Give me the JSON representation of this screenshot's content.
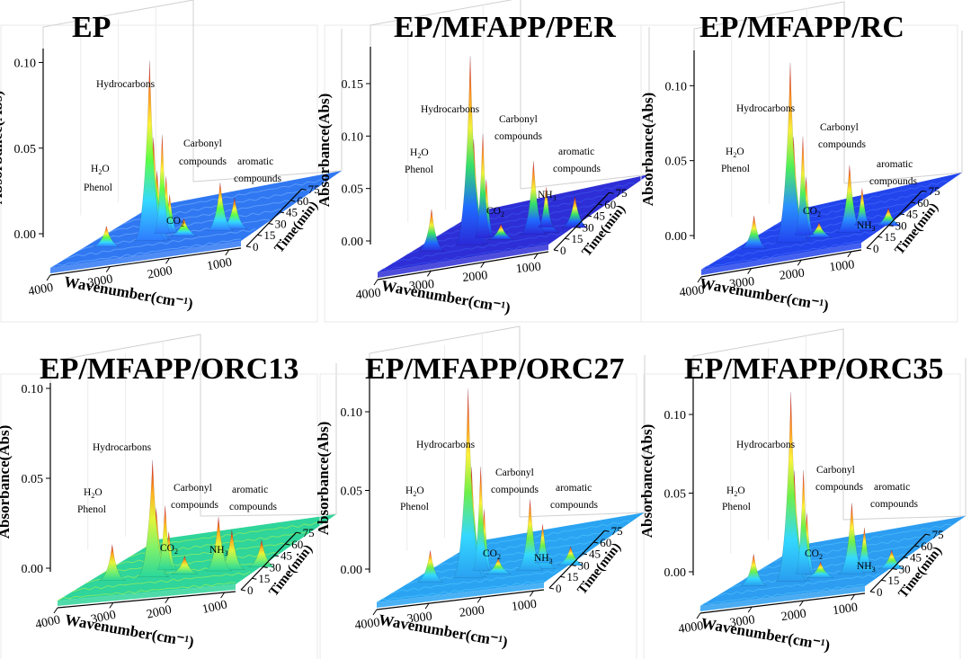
{
  "figure": {
    "panels": [
      {
        "title": "EP",
        "peaks": [
          [
            "Hydrocarbons",
            2925,
            0.105
          ]
        ],
        "annotations": [
          "Hydrocarbons",
          "H₂O",
          "Phenol",
          "Carbonyl compounds",
          "aromatic compounds",
          "CO₂"
        ]
      },
      {
        "title": "EP/MFAPP/PER",
        "annotations": [
          "Hydrocarbons",
          "H₂O",
          "Phenol",
          "Carbonyl compounds",
          "aromatic compounds",
          "CO₂",
          "NH₃"
        ]
      },
      {
        "title": "EP/MFAPP/RC",
        "annotations": [
          "Hydrocarbons",
          "H₂O",
          "Phenol",
          "Carbonyl compounds",
          "aromatic compounds",
          "CO₂",
          "NH₃"
        ]
      },
      {
        "title": "EP/MFAPP/ORC13",
        "annotations": [
          "Hydrocarbons",
          "H₂O",
          "Phenol",
          "Carbonyl compounds",
          "aromatic compounds",
          "CO₂",
          "NH₃"
        ]
      },
      {
        "title": "EP/MFAPP/ORC27",
        "annotations": [
          "Hydrocarbons",
          "H₂O",
          "Phenol",
          "Carbonyl compounds",
          "aromatic compounds",
          "CO₂",
          "NH₃"
        ]
      },
      {
        "title": "EP/MFAPP/ORC35",
        "annotations": [
          "Hydrocarbons",
          "H₂O",
          "Phenol",
          "Carbonyl compounds",
          "aromatic compounds",
          "CO₂",
          "NH₃"
        ]
      }
    ]
  },
  "chart_data": [
    {
      "type": "surface3d",
      "title": "EP",
      "xlabel": "Wavenumber(cm⁻¹)",
      "ylabel": "Time(min)",
      "zlabel": "Absorbance(Abs)",
      "x_ticks": [
        4000,
        3000,
        2000,
        1000
      ],
      "y_ticks": [
        0,
        15,
        30,
        45,
        60,
        75
      ],
      "z_ticks": [
        "0.00",
        "0.05",
        "0.10"
      ],
      "zlim": [
        0,
        0.105
      ],
      "peaks": [
        {
          "label": "Hydrocarbons",
          "wavenumber": 2925,
          "absorbance": 0.105
        },
        {
          "label": "Hydrocarbons",
          "wavenumber": 2860,
          "absorbance": 0.06
        },
        {
          "label": "Hydrocarbons",
          "wavenumber": 2800,
          "absorbance": 0.04
        },
        {
          "label": "H₂O / Phenol",
          "wavenumber": 3650,
          "absorbance": 0.012
        },
        {
          "label": "CO₂",
          "wavenumber": 2350,
          "absorbance": 0.01
        },
        {
          "label": "Carbonyl compounds",
          "wavenumber": 1740,
          "absorbance": 0.028
        },
        {
          "label": "aromatic compounds",
          "wavenumber": 1500,
          "absorbance": 0.018
        }
      ],
      "annotations": [
        "Hydrocarbons",
        "H₂O",
        "Phenol",
        "Carbonyl compounds",
        "aromatic compounds",
        "CO₂"
      ]
    },
    {
      "type": "surface3d",
      "title": "EP/MFAPP/PER",
      "xlabel": "Wavenumber(cm⁻¹)",
      "ylabel": "Time(min)",
      "zlabel": "Absorbance(Abs)",
      "x_ticks": [
        4000,
        3000,
        2000,
        1000
      ],
      "y_ticks": [
        0,
        15,
        30,
        45,
        60,
        75
      ],
      "z_ticks": [
        "0.00",
        "0.05",
        "0.10",
        "0.15"
      ],
      "zlim": [
        0,
        0.18
      ],
      "peaks": [
        {
          "label": "Hydrocarbons",
          "wavenumber": 2925,
          "absorbance": 0.18
        },
        {
          "label": "Hydrocarbons",
          "wavenumber": 2860,
          "absorbance": 0.1
        },
        {
          "label": "H₂O / Phenol",
          "wavenumber": 3650,
          "absorbance": 0.04
        },
        {
          "label": "CO₂",
          "wavenumber": 2350,
          "absorbance": 0.015
        },
        {
          "label": "Carbonyl compounds",
          "wavenumber": 1740,
          "absorbance": 0.07
        },
        {
          "label": "NH₃",
          "wavenumber": 965,
          "absorbance": 0.03
        },
        {
          "label": "aromatic compounds",
          "wavenumber": 1500,
          "absorbance": 0.03
        }
      ],
      "annotations": [
        "Hydrocarbons",
        "H₂O",
        "Phenol",
        "Carbonyl compounds",
        "aromatic compounds",
        "CO₂",
        "NH₃"
      ]
    },
    {
      "type": "surface3d",
      "title": "EP/MFAPP/RC",
      "xlabel": "Wavenumber(cm⁻¹)",
      "ylabel": "Time(min)",
      "zlabel": "Absorbance(Abs)",
      "x_ticks": [
        4000,
        3000,
        2000,
        1000
      ],
      "y_ticks": [
        0,
        15,
        30,
        45,
        60,
        75
      ],
      "z_ticks": [
        "0.00",
        "0.05",
        "0.10"
      ],
      "zlim": [
        0,
        0.12
      ],
      "peaks": [
        {
          "label": "Hydrocarbons",
          "wavenumber": 2925,
          "absorbance": 0.12
        },
        {
          "label": "Hydrocarbons",
          "wavenumber": 2860,
          "absorbance": 0.07
        },
        {
          "label": "H₂O / Phenol",
          "wavenumber": 3650,
          "absorbance": 0.022
        },
        {
          "label": "CO₂",
          "wavenumber": 2350,
          "absorbance": 0.01
        },
        {
          "label": "Carbonyl compounds",
          "wavenumber": 1740,
          "absorbance": 0.045
        },
        {
          "label": "NH₃",
          "wavenumber": 965,
          "absorbance": 0.012
        },
        {
          "label": "aromatic compounds",
          "wavenumber": 1500,
          "absorbance": 0.02
        }
      ],
      "annotations": [
        "Hydrocarbons",
        "H₂O",
        "Phenol",
        "Carbonyl compounds",
        "aromatic compounds",
        "CO₂",
        "NH₃"
      ]
    },
    {
      "type": "surface3d",
      "title": "EP/MFAPP/ORC13",
      "xlabel": "Wavenumber(cm⁻¹)",
      "ylabel": "Time(min)",
      "zlabel": "Absorbance(Abs)",
      "x_ticks": [
        4000,
        3000,
        2000,
        1000
      ],
      "y_ticks": [
        0,
        15,
        30,
        45,
        60,
        75
      ],
      "z_ticks": [
        "0.00",
        "0.05",
        "0.10"
      ],
      "zlim": [
        0,
        0.1
      ],
      "peaks": [
        {
          "label": "Hydrocarbons",
          "wavenumber": 2925,
          "absorbance": 0.065
        },
        {
          "label": "Hydrocarbons",
          "wavenumber": 2860,
          "absorbance": 0.038
        },
        {
          "label": "H₂O / Phenol",
          "wavenumber": 3650,
          "absorbance": 0.02
        },
        {
          "label": "CO₂",
          "wavenumber": 2350,
          "absorbance": 0.01
        },
        {
          "label": "Carbonyl compounds",
          "wavenumber": 1740,
          "absorbance": 0.03
        },
        {
          "label": "NH₃",
          "wavenumber": 965,
          "absorbance": 0.015
        },
        {
          "label": "aromatic compounds",
          "wavenumber": 1500,
          "absorbance": 0.022
        }
      ],
      "annotations": [
        "Hydrocarbons",
        "H₂O",
        "Phenol",
        "Carbonyl compounds",
        "aromatic compounds",
        "CO₂",
        "NH₃"
      ]
    },
    {
      "type": "surface3d",
      "title": "EP/MFAPP/ORC27",
      "xlabel": "Wavenumber(cm⁻¹)",
      "ylabel": "Time(min)",
      "zlabel": "Absorbance(Abs)",
      "x_ticks": [
        4000,
        3000,
        2000,
        1000
      ],
      "y_ticks": [
        0,
        15,
        30,
        45,
        60,
        75
      ],
      "z_ticks": [
        "0.00",
        "0.05",
        "0.10"
      ],
      "zlim": [
        0,
        0.12
      ],
      "peaks": [
        {
          "label": "Hydrocarbons",
          "wavenumber": 2925,
          "absorbance": 0.12
        },
        {
          "label": "Hydrocarbons",
          "wavenumber": 2860,
          "absorbance": 0.07
        },
        {
          "label": "H₂O / Phenol",
          "wavenumber": 3650,
          "absorbance": 0.02
        },
        {
          "label": "CO₂",
          "wavenumber": 2350,
          "absorbance": 0.01
        },
        {
          "label": "Carbonyl compounds",
          "wavenumber": 1740,
          "absorbance": 0.045
        },
        {
          "label": "NH₃",
          "wavenumber": 965,
          "absorbance": 0.012
        },
        {
          "label": "aromatic compounds",
          "wavenumber": 1500,
          "absorbance": 0.025
        }
      ],
      "annotations": [
        "Hydrocarbons",
        "H₂O",
        "Phenol",
        "Carbonyl compounds",
        "aromatic compounds",
        "CO₂",
        "NH₃"
      ]
    },
    {
      "type": "surface3d",
      "title": "EP/MFAPP/ORC35",
      "xlabel": "Wavenumber(cm⁻¹)",
      "ylabel": "Time(min)",
      "zlabel": "Absorbance(Abs)",
      "x_ticks": [
        4000,
        3000,
        2000,
        1000
      ],
      "y_ticks": [
        0,
        15,
        30,
        45,
        60,
        75
      ],
      "z_ticks": [
        "0.00",
        "0.05",
        "0.10"
      ],
      "zlim": [
        0,
        0.12
      ],
      "peaks": [
        {
          "label": "Hydrocarbons",
          "wavenumber": 2925,
          "absorbance": 0.12
        },
        {
          "label": "Hydrocarbons",
          "wavenumber": 2860,
          "absorbance": 0.07
        },
        {
          "label": "H₂O / Phenol",
          "wavenumber": 3650,
          "absorbance": 0.02
        },
        {
          "label": "CO₂",
          "wavenumber": 2350,
          "absorbance": 0.01
        },
        {
          "label": "Carbonyl compounds",
          "wavenumber": 1740,
          "absorbance": 0.045
        },
        {
          "label": "NH₃",
          "wavenumber": 965,
          "absorbance": 0.012
        },
        {
          "label": "aromatic compounds",
          "wavenumber": 1500,
          "absorbance": 0.022
        }
      ],
      "annotations": [
        "Hydrocarbons",
        "H₂O",
        "Phenol",
        "Carbonyl compounds",
        "aromatic compounds",
        "CO₂",
        "NH₃"
      ]
    }
  ]
}
